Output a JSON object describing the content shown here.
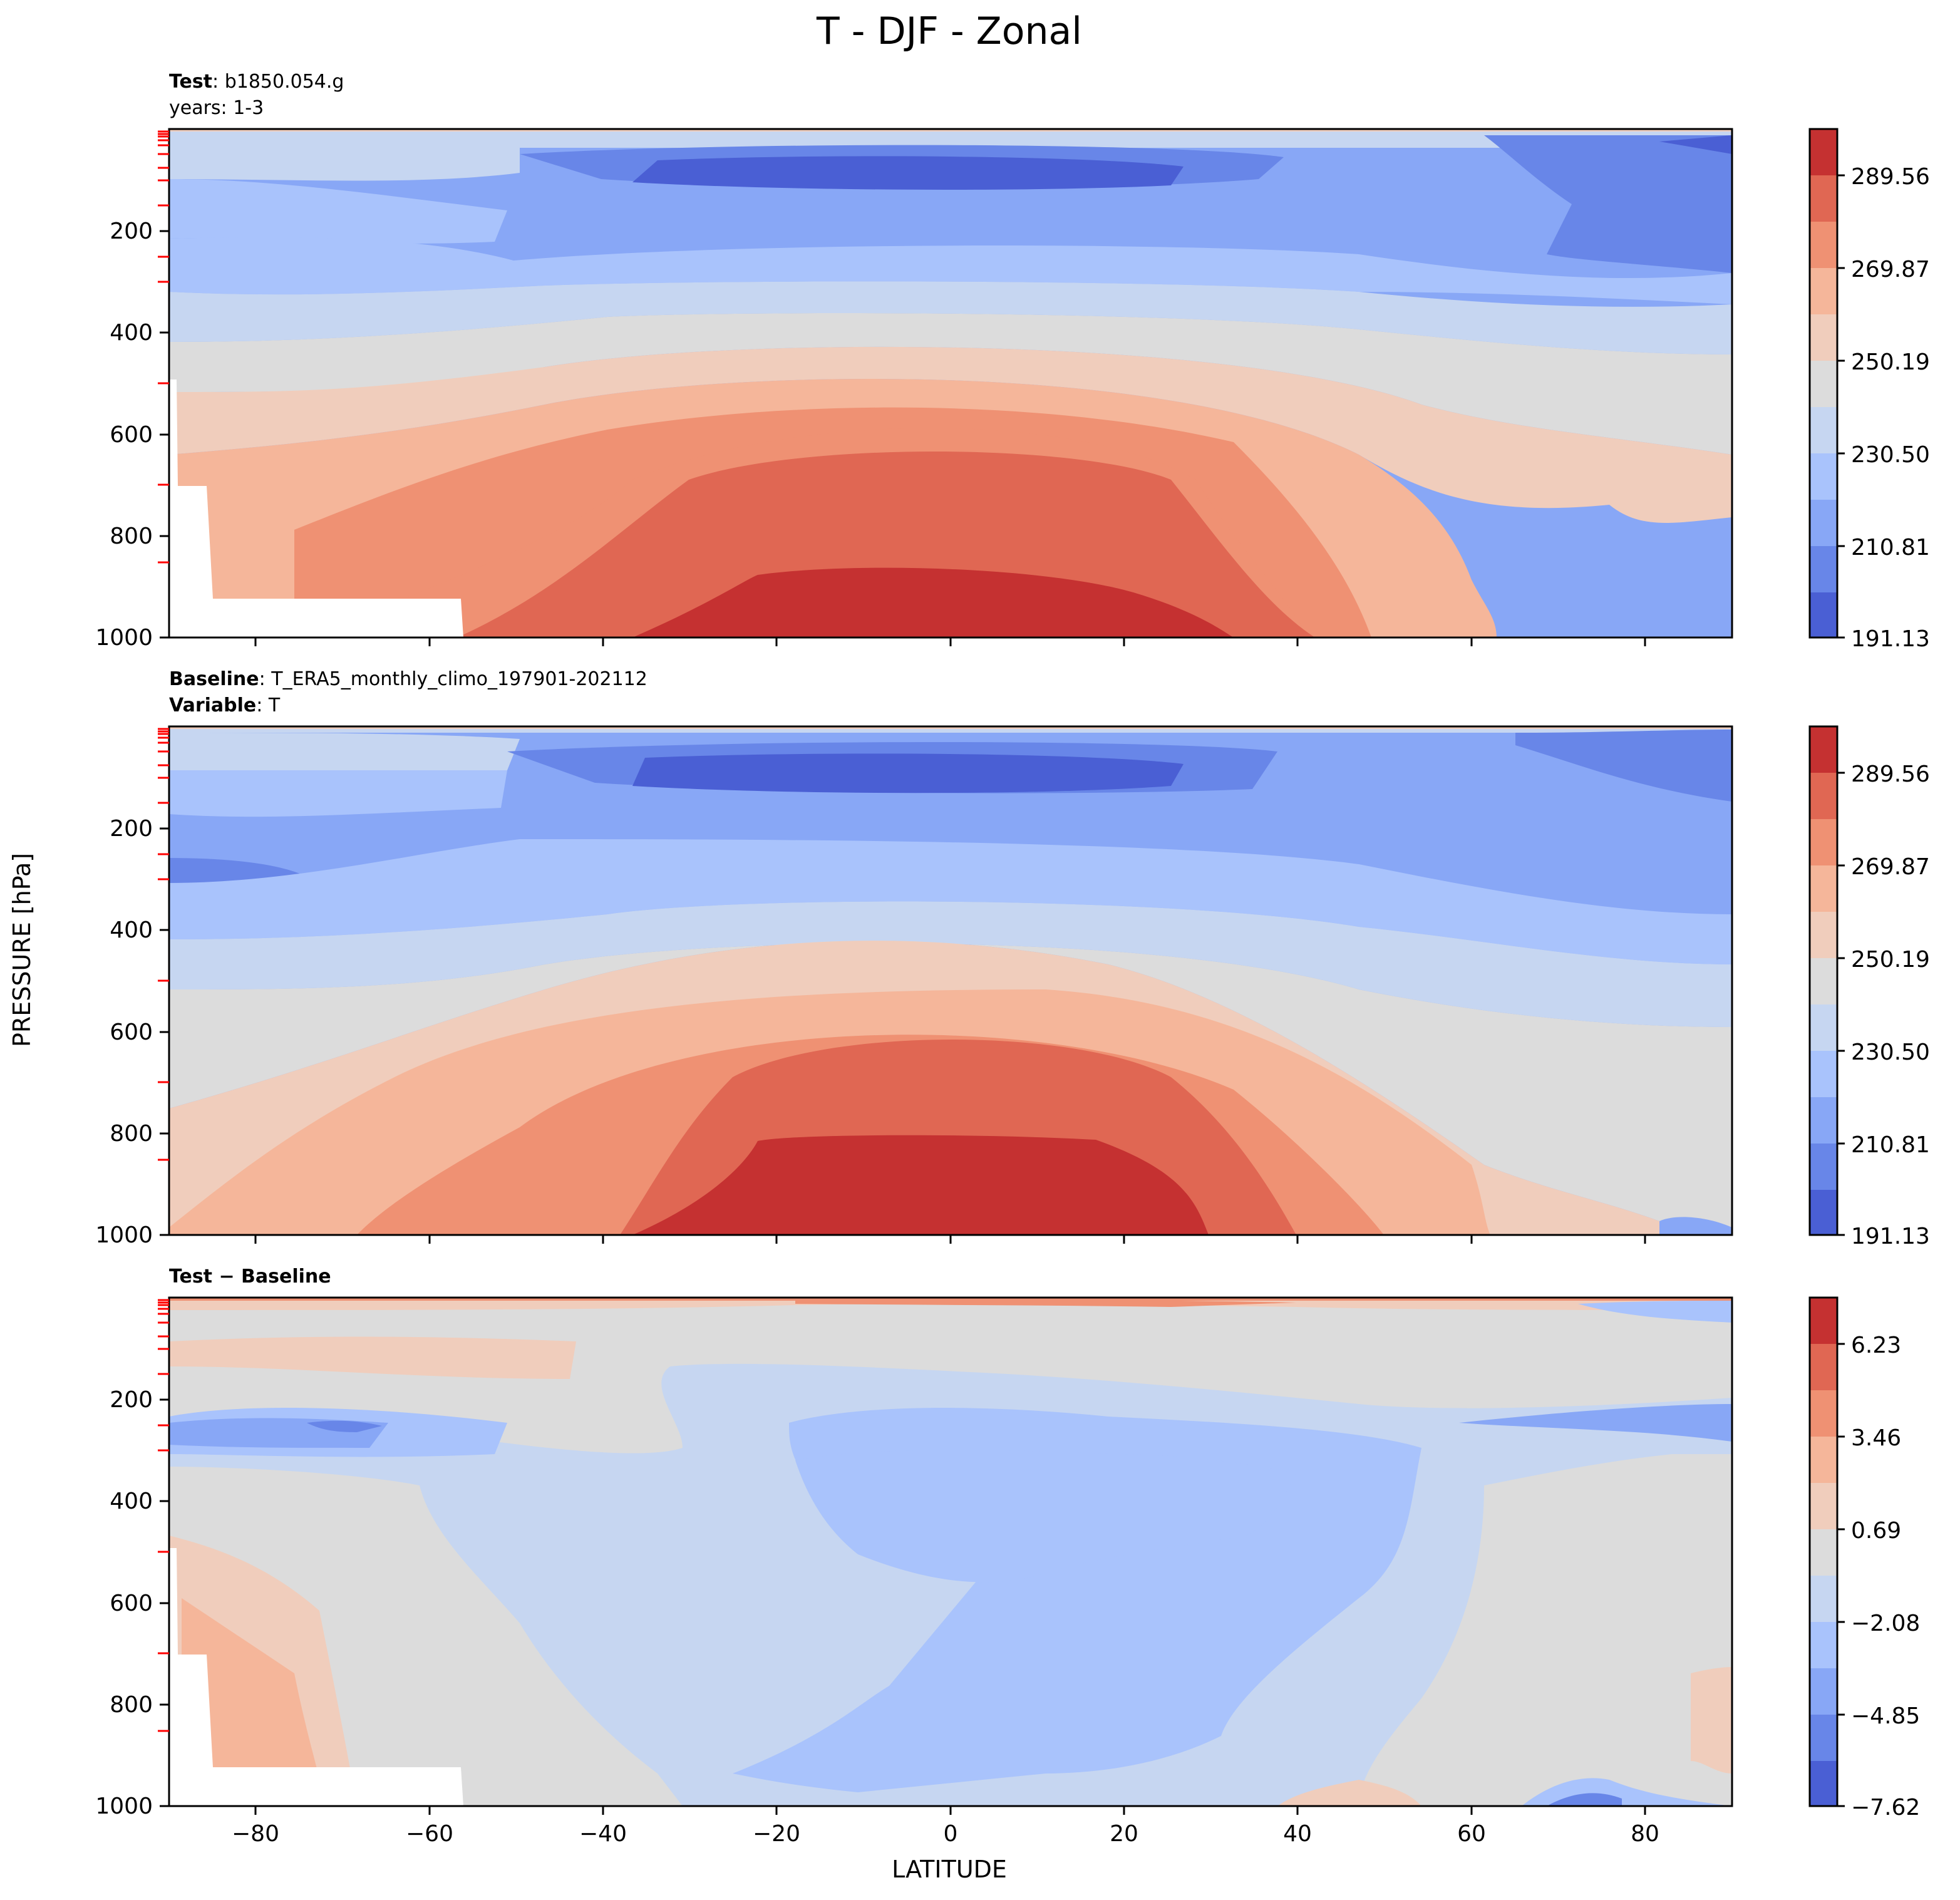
{
  "figure": {
    "title": "T - DJF - Zonal",
    "xlabel": "LATITUDE",
    "ylabel": "PRESSURE [hPa]"
  },
  "panels": [
    {
      "id": "test",
      "line1_bold": "Test",
      "line1_sep": ": ",
      "line1_text": "b1850.054.g",
      "line2_bold": "",
      "line2_sep": "",
      "line2_text": "years: 1-3"
    },
    {
      "id": "baseline",
      "line1_bold": "Baseline",
      "line1_sep": ": ",
      "line1_text": "T_ERA5_monthly_climo_197901-202112",
      "line2_bold": "Variable",
      "line2_sep": ": ",
      "line2_text": "T"
    },
    {
      "id": "diff",
      "line1_bold": "Test − Baseline",
      "line1_sep": "",
      "line1_text": "",
      "line2_bold": "",
      "line2_sep": "",
      "line2_text": ""
    }
  ],
  "colors": {
    "levels_11": [
      "#4a5fd4",
      "#6886e8",
      "#88a7f6",
      "#a9c3fc",
      "#c6d6f1",
      "#dcdcdc",
      "#f0cdbc",
      "#f5b69a",
      "#ef9173",
      "#e06753",
      "#c53131"
    ]
  },
  "chart_data": [
    {
      "type": "contour",
      "panel": "test",
      "x": {
        "label": "LATITUDE",
        "range": [
          -90,
          90
        ],
        "ticks": [
          -80,
          -60,
          -40,
          -20,
          0,
          20,
          40,
          60,
          80
        ]
      },
      "y": {
        "label": "PRESSURE [hPa]",
        "range": [
          1000,
          0
        ],
        "ticks": [
          200,
          400,
          600,
          800,
          1000
        ],
        "inverted": true
      },
      "colorbar": {
        "ticks": [
          "289.56",
          "269.87",
          "250.19",
          "230.50",
          "210.81",
          "191.13"
        ],
        "min": 191.13,
        "max": 299.4,
        "n_levels": 11
      },
      "field_notes": "Zonal-mean temperature (K); warmest (~290-299 K) in tropical lower troposphere, coldest (~191-201 K) near the tropical tropopause around 50-100 hPa; missing data below surface over Antarctica"
    },
    {
      "type": "contour",
      "panel": "baseline",
      "x": {
        "label": "LATITUDE",
        "range": [
          -90,
          90
        ],
        "ticks": [
          -80,
          -60,
          -40,
          -20,
          0,
          20,
          40,
          60,
          80
        ]
      },
      "y": {
        "label": "PRESSURE [hPa]",
        "range": [
          1000,
          0
        ],
        "ticks": [
          200,
          400,
          600,
          800,
          1000
        ],
        "inverted": true
      },
      "colorbar": {
        "ticks": [
          "289.56",
          "269.87",
          "250.19",
          "230.50",
          "210.81",
          "191.13"
        ],
        "min": 191.13,
        "max": 299.4,
        "n_levels": 11
      },
      "field_notes": "ERA5 zonal-mean temperature (K), same structure as test"
    },
    {
      "type": "contour",
      "panel": "diff",
      "x": {
        "label": "LATITUDE",
        "range": [
          -90,
          90
        ],
        "ticks": [
          -80,
          -60,
          -40,
          -20,
          0,
          20,
          40,
          60,
          80
        ]
      },
      "y": {
        "label": "PRESSURE [hPa]",
        "range": [
          1000,
          0
        ],
        "ticks": [
          200,
          400,
          600,
          800,
          1000
        ],
        "inverted": true
      },
      "colorbar": {
        "ticks": [
          "6.23",
          "3.46",
          "0.69",
          "−2.08",
          "−4.85",
          "−7.62"
        ],
        "min": -7.62,
        "max": 7.62,
        "n_levels": 11
      },
      "field_notes": "Test minus baseline (K); mostly -0.7 to -3.5 in tropical troposphere, positive up to ~+3 near Antarctic surface and in upper stratosphere"
    }
  ]
}
